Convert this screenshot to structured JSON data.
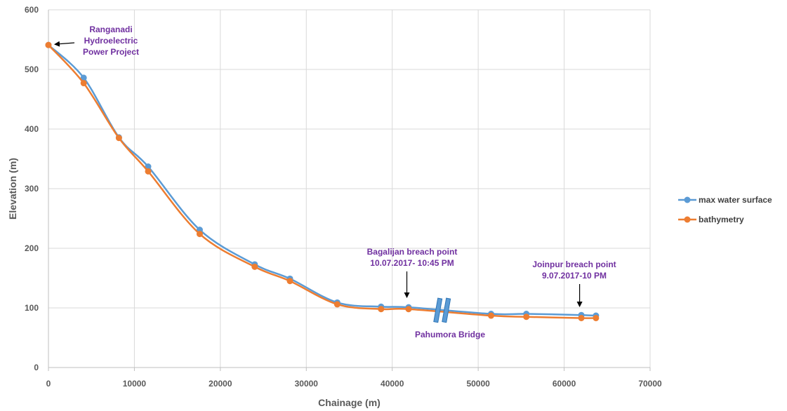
{
  "chart_data": {
    "type": "line",
    "xlabel": "Chainage (m)",
    "ylabel": "Elevation (m)",
    "xlim": [
      0,
      70000
    ],
    "ylim": [
      0,
      600
    ],
    "xticks": [
      0,
      10000,
      20000,
      30000,
      40000,
      50000,
      60000,
      70000
    ],
    "yticks": [
      0,
      100,
      200,
      300,
      400,
      500,
      600
    ],
    "grid": true,
    "legend_position": "right",
    "series": [
      {
        "name": "max water surface",
        "color": "#5b9bd5",
        "points": [
          [
            0,
            541
          ],
          [
            4100,
            486
          ],
          [
            8200,
            386
          ],
          [
            11600,
            337
          ],
          [
            17600,
            231
          ],
          [
            24000,
            173
          ],
          [
            28100,
            149
          ],
          [
            33600,
            109
          ],
          [
            38700,
            102
          ],
          [
            41900,
            101
          ],
          [
            51500,
            90
          ],
          [
            55600,
            90
          ],
          [
            62000,
            88
          ],
          [
            63700,
            87
          ]
        ]
      },
      {
        "name": "bathymetry",
        "color": "#ed7d31",
        "points": [
          [
            0,
            541
          ],
          [
            4100,
            477
          ],
          [
            8200,
            385
          ],
          [
            11600,
            329
          ],
          [
            17600,
            224
          ],
          [
            24000,
            169
          ],
          [
            28100,
            145
          ],
          [
            33600,
            106
          ],
          [
            38700,
            98
          ],
          [
            41900,
            98
          ],
          [
            51500,
            87
          ],
          [
            55600,
            85
          ],
          [
            62000,
            83
          ],
          [
            63700,
            83
          ]
        ]
      }
    ],
    "annotations": [
      {
        "lines": [
          "Ranganadi",
          "Hydroelectric",
          "Power Project"
        ],
        "target": [
          0,
          541
        ]
      },
      {
        "lines": [
          "Bagalijan breach point",
          "10.07.2017-  10:45  PM"
        ],
        "target": [
          41700,
          101
        ]
      },
      {
        "lines": [
          "Joinpur breach point",
          "9.07.2017-10  PM"
        ],
        "target": [
          61800,
          88
        ]
      },
      {
        "lines": [
          "Pahumora Bridge"
        ],
        "target": [
          45800,
          96
        ]
      }
    ]
  }
}
